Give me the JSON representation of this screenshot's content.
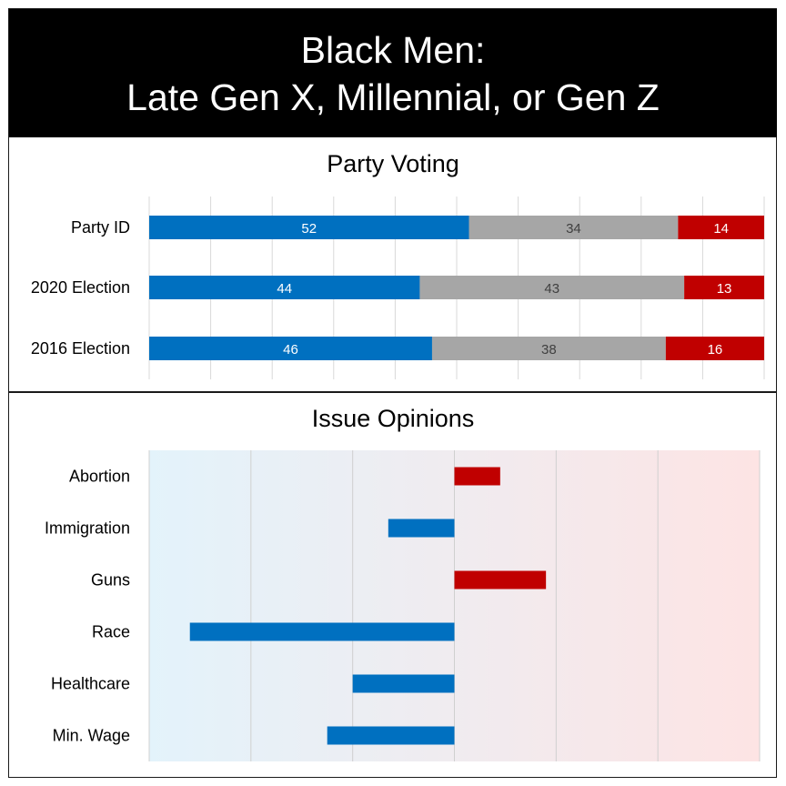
{
  "header": {
    "line1": "Black Men:",
    "line2": "Late Gen X, Millennial, or Gen Z"
  },
  "colors": {
    "dem": "#0070c0",
    "neutral": "#a6a6a6",
    "rep": "#c00000",
    "bg_left": "#e3f3fb",
    "bg_right": "#fde4e4"
  },
  "chart_data": [
    {
      "type": "bar",
      "stacked": true,
      "orientation": "horizontal",
      "title": "Party Voting",
      "categories": [
        "Party ID",
        "2020 Election",
        "2016 Election"
      ],
      "series": [
        {
          "values": [
            52,
            44,
            46
          ],
          "color": "#0070c0"
        },
        {
          "values": [
            34,
            43,
            38
          ],
          "color": "#a6a6a6"
        },
        {
          "values": [
            14,
            13,
            16
          ],
          "color": "#c00000"
        }
      ],
      "xlim": [
        0,
        100
      ],
      "grid": true
    },
    {
      "type": "bar",
      "orientation": "horizontal",
      "diverging": true,
      "title": "Issue Opinions",
      "categories": [
        "Abortion",
        "Immigration",
        "Guns",
        "Race",
        "Healthcare",
        "Min. Wage"
      ],
      "values": [
        0.45,
        -0.65,
        0.9,
        -2.6,
        -1.0,
        -1.25
      ],
      "xlim": [
        -3,
        3
      ],
      "grid": true
    }
  ]
}
